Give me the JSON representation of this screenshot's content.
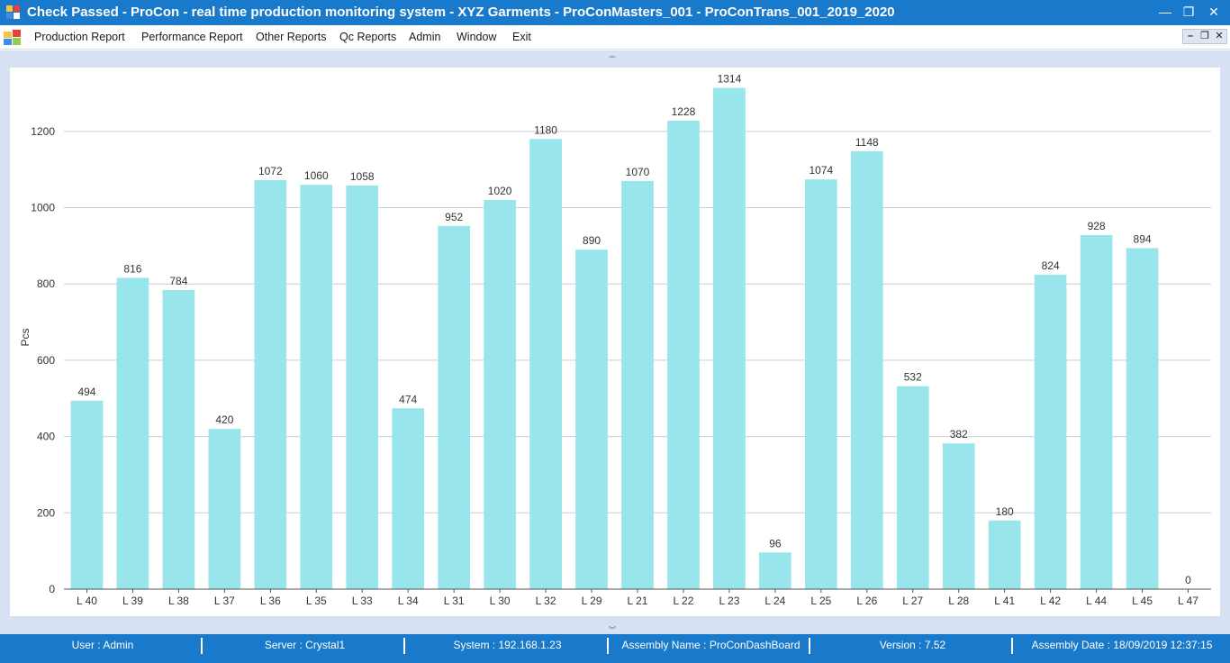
{
  "window": {
    "title": "Check Passed - ProCon - real time production monitoring system - XYZ Garments - ProConMasters_001 - ProConTrans_001_2019_2020",
    "minimize_glyph": "—",
    "restore_glyph": "❐",
    "close_glyph": "✕"
  },
  "menu": {
    "items": [
      {
        "label": "Production Report"
      },
      {
        "label": "Performance Report"
      },
      {
        "label": "Other Reports"
      },
      {
        "label": "Qc Reports"
      },
      {
        "label": "Admin"
      },
      {
        "label": "Window"
      },
      {
        "label": "Exit"
      }
    ],
    "mdi_minimize": "–",
    "mdi_restore": "❐",
    "mdi_close": "✕"
  },
  "chart_data": {
    "type": "bar",
    "title": "",
    "xlabel": "",
    "ylabel": "Pcs",
    "ylim": [
      0,
      1320
    ],
    "yticks": [
      0,
      200,
      400,
      600,
      800,
      1000,
      1200
    ],
    "grid": true,
    "legend": "none",
    "bar_color": "#98e5ec",
    "categories": [
      "L 40",
      "L 39",
      "L 38",
      "L 37",
      "L 36",
      "L 35",
      "L 33",
      "L 34",
      "L 31",
      "L 30",
      "L 32",
      "L 29",
      "L 21",
      "L 22",
      "L 23",
      "L 24",
      "L 25",
      "L 26",
      "L 27",
      "L 28",
      "L 41",
      "L 42",
      "L 44",
      "L 45",
      "L 47"
    ],
    "values": [
      494,
      816,
      784,
      420,
      1072,
      1060,
      1058,
      474,
      952,
      1020,
      1180,
      890,
      1070,
      1228,
      1314,
      96,
      1074,
      1148,
      532,
      382,
      180,
      824,
      928,
      894,
      0
    ]
  },
  "status": {
    "user": "User : Admin",
    "server": "Server : Crystal1",
    "system": "System : 192.168.1.23",
    "assembly_name": "Assembly Name : ProConDashBoard",
    "version": "Version : 7.52",
    "assembly_date": "Assembly Date : 18/09/2019 12:37:15"
  },
  "colors": {
    "titlebar": "#1979ca",
    "panel": "#d6e2f3",
    "bar": "#98e5ec"
  }
}
